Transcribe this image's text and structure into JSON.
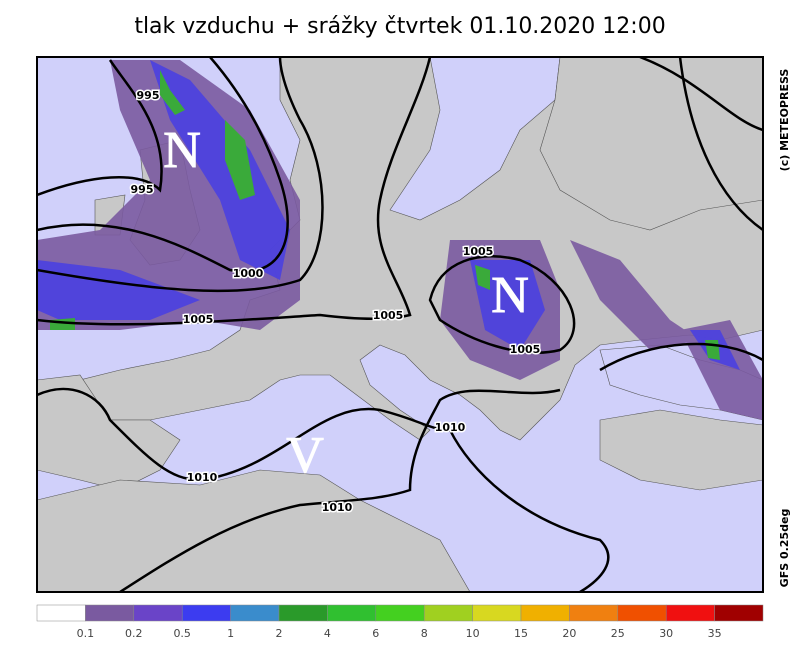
{
  "title": "tlak vzduchu + srážky čtvrtek 01.10.2020 12:00",
  "copyright": "(c) METEOPRESS",
  "model": "GFS 0.25deg",
  "pressure_centers": [
    "N",
    "N",
    "V"
  ],
  "isobar_labels": [
    "995",
    "995",
    "1000",
    "1005",
    "1005",
    "1005",
    "1005",
    "1010",
    "1010",
    "1010"
  ],
  "legend": {
    "colors": [
      "#ffffff",
      "#7a5aa0",
      "#6a44c8",
      "#3c3cf0",
      "#3a8ccc",
      "#2a9a2a",
      "#30c030",
      "#44d020",
      "#a0d020",
      "#d8d820",
      "#f0b000",
      "#f08010",
      "#f05000",
      "#f01010",
      "#a00000"
    ],
    "labels": [
      "0.1",
      "0.2",
      "0.5",
      "1",
      "2",
      "4",
      "6",
      "8",
      "10",
      "15",
      "20",
      "25",
      "30",
      "35"
    ]
  }
}
